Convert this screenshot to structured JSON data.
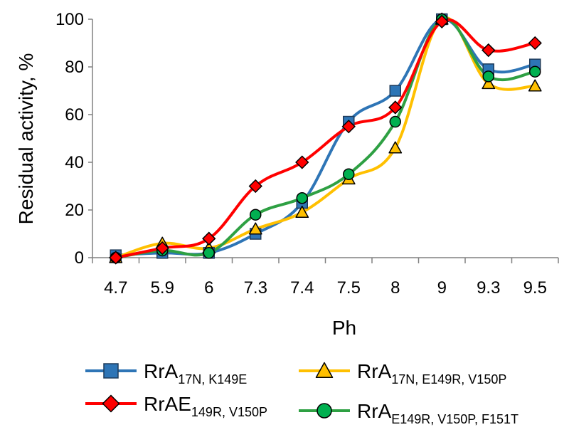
{
  "chart_data": {
    "type": "line",
    "xlabel": "Ph",
    "ylabel": "Residual activity, %",
    "categories": [
      "4.7",
      "5.9",
      "6",
      "7.3",
      "7.4",
      "7.5",
      "8",
      "9",
      "9.3",
      "9.5"
    ],
    "ylim": [
      0,
      100
    ],
    "yticks": [
      0,
      20,
      40,
      60,
      80,
      100
    ],
    "grid": false,
    "legend_position": "bottom",
    "series": [
      {
        "name": "RrA17N, K149E",
        "legend_main": "RrA",
        "legend_sub": "17N, K149E",
        "color": "#2E75B6",
        "marker": "square",
        "marker_fill": "#2E75B6",
        "values": [
          1,
          2,
          2,
          10,
          23,
          57,
          70,
          100,
          79,
          81
        ]
      },
      {
        "name": "RrA17N, E149R, V150P",
        "legend_main": "RrA",
        "legend_sub": "17N, E149R, V150P",
        "color": "#FFC000",
        "marker": "triangle",
        "marker_fill": "#FFC000",
        "values": [
          0,
          6,
          4,
          12,
          19,
          33,
          46,
          100,
          73,
          72
        ]
      },
      {
        "name": "RrAE149R, V150P",
        "legend_main": "RrAE",
        "legend_sub": "149R, V150P",
        "color": "#FF0000",
        "marker": "diamond",
        "marker_fill": "#FF0000",
        "values": [
          0,
          4,
          8,
          30,
          40,
          55,
          63,
          99,
          87,
          90
        ]
      },
      {
        "name": "RrAE149R, V150P, F151T",
        "legend_main": "RrA",
        "legend_sub": "E149R, V150P, F151T",
        "color": "#2EA043",
        "marker": "circle",
        "marker_fill": "#00B050",
        "values": [
          0,
          3,
          2,
          18,
          25,
          35,
          57,
          100,
          76,
          78
        ]
      }
    ]
  }
}
